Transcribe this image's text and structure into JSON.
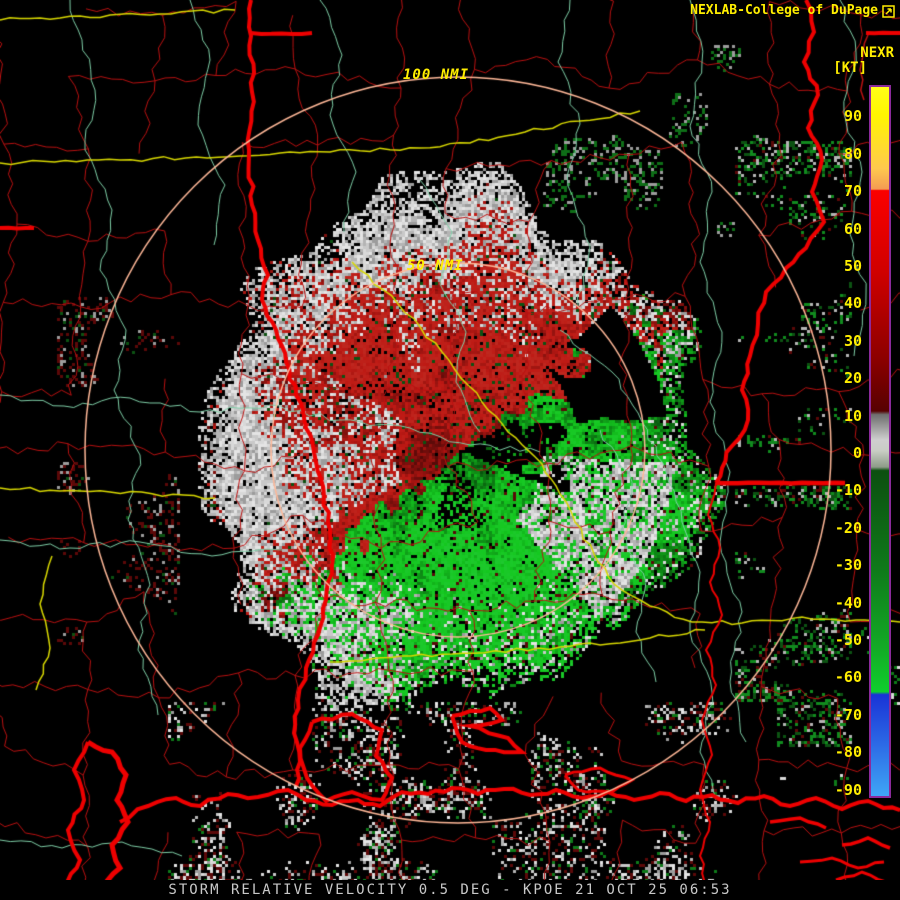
{
  "title_bar": {
    "brand": "NEXLAB-College of DuPage"
  },
  "legend": {
    "label_top": "NEXR",
    "label_unit": "[KT]",
    "tick_values": [
      90,
      80,
      70,
      60,
      50,
      40,
      30,
      20,
      10,
      0,
      -10,
      -20,
      -30,
      -40,
      -50,
      -60,
      -70,
      -80,
      -90
    ],
    "value_max": 98,
    "value_min": -92
  },
  "range_rings": [
    {
      "label": "100 NMI",
      "radius_nmi": 100
    },
    {
      "label": "50 NMI",
      "radius_nmi": 50
    }
  ],
  "status_bar": {
    "text": "STORM RELATIVE VELOCITY 0.5 DEG - KPOE 21 OCT 25 06:53",
    "product": "STORM RELATIVE VELOCITY",
    "elevation": "0.5 DEG",
    "station": "KPOE",
    "date": "21 OCT 25",
    "time": "06:53"
  },
  "colors": {
    "label_yellow": "#ffee00",
    "status_gray": "#c8c8c8",
    "county_line": "#bb1111",
    "state_line": "#ee0000",
    "highway": "#d8d800",
    "river": "#7fd0a8",
    "range_ring": "#ffb898",
    "legend_border": "#8b2a9b",
    "outbound_red": "#8f1010",
    "inbound_green": "#11881e",
    "low_velocity_gray": "#c9c9c9"
  }
}
